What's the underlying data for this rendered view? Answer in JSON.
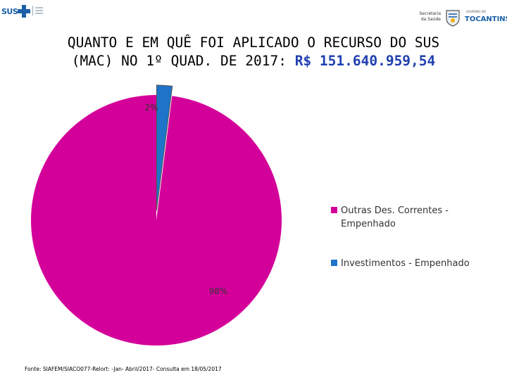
{
  "header": {
    "sus_logo_text": "SUS",
    "secretaria_text": "Secretaria da Saúde",
    "state_name": "TOCANTINS",
    "state_gov_text": "GOVERNO DO"
  },
  "title": {
    "line1": "QUANTO E EM QUÊ FOI APLICADO O RECURSO DO SUS",
    "line2_prefix": "(MAC) NO 1º QUAD. DE 2017: ",
    "amount": "R$ 151.640.959,54"
  },
  "chart_data": {
    "type": "pie",
    "title": "",
    "series": [
      {
        "name": "Outras Des. Correntes - Empenhado",
        "value": 98,
        "label": "98%",
        "color": "#d4009a"
      },
      {
        "name": "Investimentos - Empenhado",
        "value": 2,
        "label": "2%",
        "color": "#1e74c8"
      }
    ],
    "legend_position": "right",
    "legend": [
      "Outras Des. Correntes - Empenhado",
      "Investimentos - Empenhado"
    ]
  },
  "footer": {
    "source": "Fonte: SIAFEM/SIACO077-Relort: -Jan- Abril/2017- Consulta em 18/05/2017"
  }
}
